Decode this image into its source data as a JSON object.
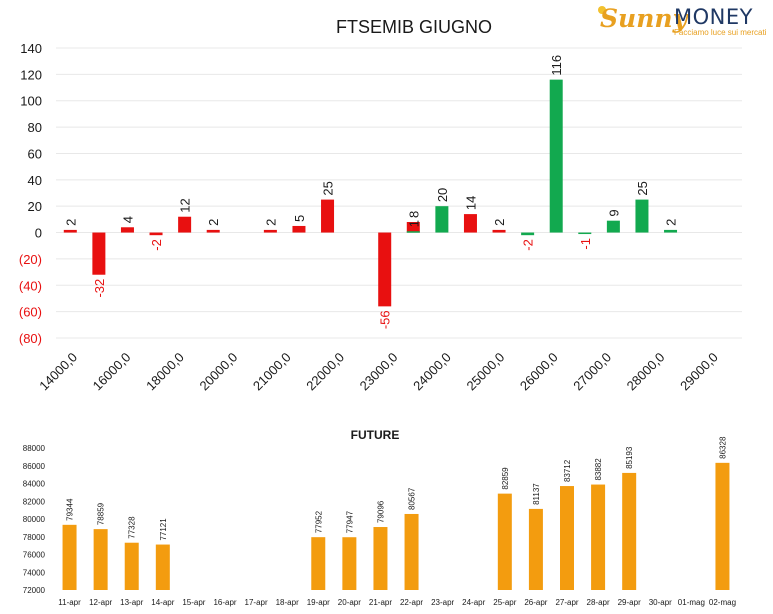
{
  "logo": {
    "brand_left": "Sunny",
    "brand_right": "MONEY",
    "tagline": "Facciamo luce sui mercati"
  },
  "colors": {
    "negative": "#e81010",
    "positive": "#12a94f",
    "future": "#f39c0f",
    "grid": "#e8e8e8"
  },
  "chart_data": [
    {
      "type": "bar",
      "title": "FTSEMIB GIUGNO",
      "y_tick_labels": [
        "140",
        "120",
        "100",
        "80",
        "60",
        "40",
        "20",
        "0",
        "(20)",
        "(40)",
        "(60)",
        "(80)"
      ],
      "ylim": [
        -80,
        140
      ],
      "x_tick_labels": [
        "14000,0",
        "16000,0",
        "18000,0",
        "20000,0",
        "21000,0",
        "22000,0",
        "23000,0",
        "24000,0",
        "25000,0",
        "26000,0",
        "27000,0",
        "28000,0",
        "29000,0"
      ],
      "grid": true,
      "series": [
        {
          "values": [
            2,
            -32,
            4,
            -2,
            12,
            2,
            null,
            2,
            5,
            25,
            null,
            -56,
            8,
            null,
            14,
            2,
            null,
            null,
            null,
            null,
            null,
            null,
            null,
            null
          ]
        },
        {
          "values": [
            null,
            null,
            null,
            null,
            null,
            null,
            null,
            null,
            null,
            null,
            null,
            null,
            1,
            20,
            null,
            null,
            -2,
            116,
            -1,
            9,
            25,
            2,
            null,
            null
          ]
        }
      ],
      "series_colors": [
        "#e81010",
        "#12a94f"
      ]
    },
    {
      "type": "bar",
      "title": "FUTURE",
      "categories": [
        "11-apr",
        "12-apr",
        "13-apr",
        "14-apr",
        "15-apr",
        "16-apr",
        "17-apr",
        "18-apr",
        "19-apr",
        "20-apr",
        "21-apr",
        "22-apr",
        "23-apr",
        "24-apr",
        "25-apr",
        "26-apr",
        "27-apr",
        "28-apr",
        "29-apr",
        "30-apr",
        "01-mag",
        "02-mag"
      ],
      "values": [
        79344,
        78859,
        77328,
        77121,
        null,
        null,
        null,
        null,
        77952,
        77947,
        79096,
        80567,
        null,
        null,
        82859,
        81137,
        83712,
        83882,
        85193,
        null,
        null,
        86328
      ],
      "y_tick_labels": [
        "88000",
        "86000",
        "84000",
        "82000",
        "80000",
        "78000",
        "76000",
        "74000",
        "72000"
      ],
      "ylim": [
        72000,
        88000
      ],
      "grid": false
    }
  ]
}
